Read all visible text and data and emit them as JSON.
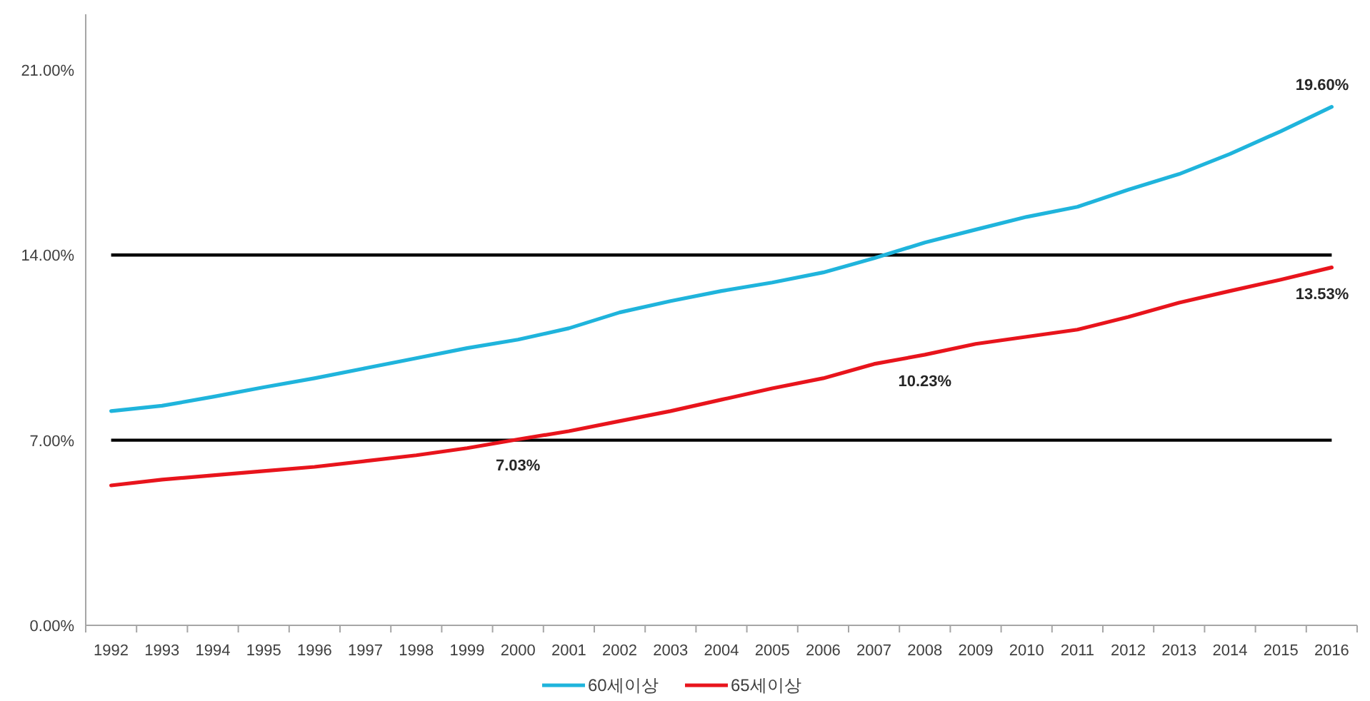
{
  "chart_data": {
    "type": "line",
    "categories": [
      "1992",
      "1993",
      "1994",
      "1995",
      "1996",
      "1997",
      "1998",
      "1999",
      "2000",
      "2001",
      "2002",
      "2003",
      "2004",
      "2005",
      "2006",
      "2007",
      "2008",
      "2009",
      "2010",
      "2011",
      "2012",
      "2013",
      "2014",
      "2015",
      "2016"
    ],
    "series": [
      {
        "name": "60세이상",
        "color": "#1fb4dc",
        "values": [
          8.1,
          8.3,
          8.64,
          9.0,
          9.34,
          9.72,
          10.1,
          10.48,
          10.8,
          11.23,
          11.83,
          12.26,
          12.64,
          12.96,
          13.34,
          13.88,
          14.47,
          14.96,
          15.44,
          15.82,
          16.47,
          17.06,
          17.82,
          18.68,
          19.6
        ],
        "value_labels": [
          null,
          null,
          null,
          null,
          null,
          null,
          null,
          null,
          null,
          null,
          null,
          null,
          null,
          null,
          null,
          null,
          null,
          null,
          null,
          null,
          null,
          null,
          null,
          null,
          "19.60%"
        ]
      },
      {
        "name": "65세이상",
        "color": "#e8141c",
        "values": [
          5.29,
          5.51,
          5.67,
          5.83,
          5.99,
          6.21,
          6.43,
          6.7,
          7.03,
          7.34,
          7.72,
          8.1,
          8.53,
          8.96,
          9.34,
          9.88,
          10.23,
          10.64,
          10.91,
          11.18,
          11.66,
          12.2,
          12.64,
          13.07,
          13.53
        ],
        "value_labels": [
          null,
          null,
          null,
          null,
          null,
          null,
          null,
          null,
          "7.03%",
          null,
          null,
          null,
          null,
          null,
          null,
          null,
          "10.23%",
          null,
          null,
          null,
          null,
          null,
          null,
          null,
          "13.53%"
        ]
      }
    ],
    "ylim": [
      0,
      23.1
    ],
    "yticks": [
      {
        "value": 0,
        "label": "0.00%"
      },
      {
        "value": 7,
        "label": "7.00%"
      },
      {
        "value": 14,
        "label": "14.00%"
      },
      {
        "value": 21,
        "label": "21.00%"
      }
    ],
    "ref_lines": [
      {
        "axis": "y",
        "value": 7,
        "color": "#000000"
      },
      {
        "axis": "y",
        "value": 14,
        "color": "#000000"
      }
    ],
    "grid": false,
    "legend": "bottom",
    "marker": "none",
    "line_style": "solid"
  }
}
